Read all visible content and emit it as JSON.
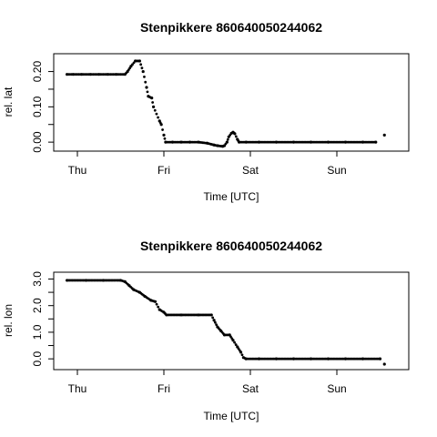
{
  "chart_data": [
    {
      "type": "scatter",
      "title": "Stenpikkere 860640050244062",
      "xlabel": "Time [UTC]",
      "ylabel": "rel. lat",
      "xlim": [
        -0.12,
        3.6
      ],
      "ylim": [
        -0.01,
        0.235
      ],
      "x_ticks": [
        {
          "label": "Thu",
          "value": 0
        },
        {
          "label": "Fri",
          "value": 1
        },
        {
          "label": "Sat",
          "value": 2
        },
        {
          "label": "Sun",
          "value": 3
        }
      ],
      "y_ticks": [
        {
          "label": "0.00",
          "value": 0
        },
        {
          "label": "0.10",
          "value": 0.1
        },
        {
          "label": "0.20",
          "value": 0.2
        }
      ],
      "minor_y_ticks": [
        0.05,
        0.15
      ],
      "x_unit": "days since Thu 00:00 UTC",
      "points": [
        [
          -0.12,
          0.192
        ],
        [
          -0.05,
          0.192
        ],
        [
          0.05,
          0.192
        ],
        [
          0.15,
          0.192
        ],
        [
          0.25,
          0.192
        ],
        [
          0.35,
          0.192
        ],
        [
          0.45,
          0.192
        ],
        [
          0.55,
          0.192
        ],
        [
          0.58,
          0.2
        ],
        [
          0.62,
          0.215
        ],
        [
          0.67,
          0.23
        ],
        [
          0.72,
          0.23
        ],
        [
          0.76,
          0.2
        ],
        [
          0.8,
          0.155
        ],
        [
          0.82,
          0.13
        ],
        [
          0.86,
          0.125
        ],
        [
          0.88,
          0.1
        ],
        [
          0.95,
          0.06
        ],
        [
          0.97,
          0.05
        ],
        [
          1.0,
          0.02
        ],
        [
          1.02,
          0.0
        ],
        [
          1.1,
          0.0
        ],
        [
          1.2,
          0.0
        ],
        [
          1.3,
          0.0
        ],
        [
          1.4,
          0.0
        ],
        [
          1.5,
          -0.003
        ],
        [
          1.58,
          -0.008
        ],
        [
          1.62,
          -0.01
        ],
        [
          1.68,
          -0.012
        ],
        [
          1.7,
          -0.01
        ],
        [
          1.73,
          0.0
        ],
        [
          1.75,
          0.015
        ],
        [
          1.78,
          0.025
        ],
        [
          1.8,
          0.028
        ],
        [
          1.82,
          0.024
        ],
        [
          1.85,
          0.008
        ],
        [
          1.87,
          0.0
        ],
        [
          1.95,
          0.0
        ],
        [
          2.1,
          0.0
        ],
        [
          2.3,
          0.0
        ],
        [
          2.5,
          0.0
        ],
        [
          2.7,
          0.0
        ],
        [
          2.9,
          0.0
        ],
        [
          3.1,
          0.0
        ],
        [
          3.3,
          0.0
        ],
        [
          3.45,
          0.0
        ],
        [
          3.55,
          0.02
        ]
      ]
    },
    {
      "type": "scatter",
      "title": "Stenpikkere 860640050244062",
      "xlabel": "Time [UTC]",
      "ylabel": "rel. lon",
      "xlim": [
        -0.12,
        3.6
      ],
      "ylim": [
        -0.2,
        3.05
      ],
      "x_ticks": [
        {
          "label": "Thu",
          "value": 0
        },
        {
          "label": "Fri",
          "value": 1
        },
        {
          "label": "Sat",
          "value": 2
        },
        {
          "label": "Sun",
          "value": 3
        }
      ],
      "y_ticks": [
        {
          "label": "0.0",
          "value": 0
        },
        {
          "label": "1.0",
          "value": 1
        },
        {
          "label": "2.0",
          "value": 2
        },
        {
          "label": "3.0",
          "value": 3
        }
      ],
      "minor_y_ticks": [
        0.5,
        1.5,
        2.5
      ],
      "x_unit": "days since Thu 00:00 UTC",
      "points": [
        [
          -0.12,
          2.95
        ],
        [
          0.1,
          2.95
        ],
        [
          0.3,
          2.95
        ],
        [
          0.5,
          2.95
        ],
        [
          0.55,
          2.9
        ],
        [
          0.6,
          2.75
        ],
        [
          0.65,
          2.6
        ],
        [
          0.72,
          2.5
        ],
        [
          0.78,
          2.35
        ],
        [
          0.85,
          2.2
        ],
        [
          0.9,
          2.15
        ],
        [
          0.95,
          1.85
        ],
        [
          1.0,
          1.75
        ],
        [
          1.03,
          1.65
        ],
        [
          1.2,
          1.65
        ],
        [
          1.4,
          1.65
        ],
        [
          1.55,
          1.65
        ],
        [
          1.58,
          1.45
        ],
        [
          1.62,
          1.2
        ],
        [
          1.66,
          1.05
        ],
        [
          1.7,
          0.9
        ],
        [
          1.76,
          0.9
        ],
        [
          1.8,
          0.7
        ],
        [
          1.85,
          0.45
        ],
        [
          1.89,
          0.25
        ],
        [
          1.92,
          0.05
        ],
        [
          1.95,
          0.0
        ],
        [
          2.1,
          0.0
        ],
        [
          2.3,
          0.0
        ],
        [
          2.5,
          0.0
        ],
        [
          2.7,
          0.0
        ],
        [
          2.9,
          0.0
        ],
        [
          3.1,
          0.0
        ],
        [
          3.3,
          0.0
        ],
        [
          3.5,
          0.0
        ],
        [
          3.55,
          -0.2
        ]
      ]
    }
  ]
}
